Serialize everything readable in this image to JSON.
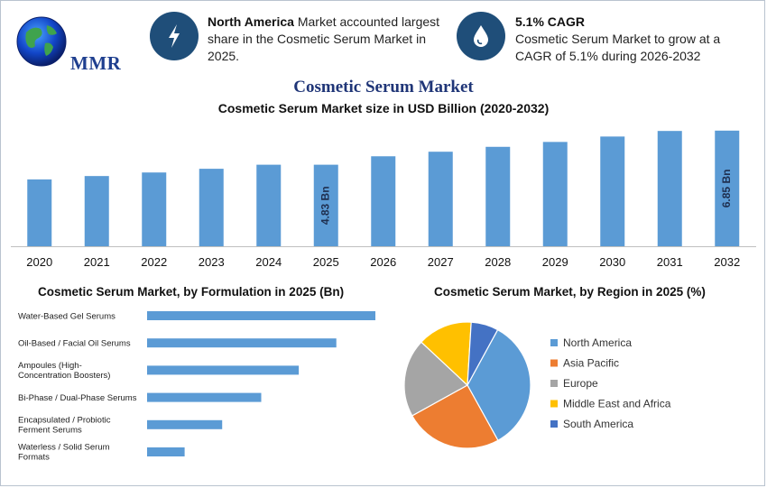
{
  "header": {
    "logo_text": "MMR",
    "stat1": {
      "bold": "North America",
      "text": " Market accounted largest share in the Cosmetic Serum Market in 2025.",
      "icon": "lightning-icon"
    },
    "stat2": {
      "bold": "5.1% CAGR",
      "text": "Cosmetic Serum Market to grow at a CAGR of 5.1% during 2026-2032",
      "icon": "water-drop-icon"
    }
  },
  "title": "Cosmetic Serum Market",
  "colors": {
    "bar": "#5b9bd5",
    "axis": "#bfbfbf",
    "title": "#1f3577"
  },
  "chart_data": [
    {
      "type": "bar",
      "title": "Cosmetic Serum Market size in USD Billion (2020-2032)",
      "categories": [
        "2020",
        "2021",
        "2022",
        "2023",
        "2024",
        "2025",
        "2026",
        "2027",
        "2028",
        "2029",
        "2030",
        "2031",
        "2032"
      ],
      "values": [
        3.96,
        4.16,
        4.37,
        4.59,
        4.83,
        4.83,
        5.33,
        5.6,
        5.89,
        6.18,
        6.5,
        6.83,
        6.85
      ],
      "data_labels": [
        {
          "index": 5,
          "text": "4.83 Bn"
        },
        {
          "index": 12,
          "text": "6.85 Bn"
        }
      ],
      "xlabel": "",
      "ylabel": "",
      "ylim": [
        0,
        7.0
      ],
      "grid": false
    },
    {
      "type": "bar",
      "orientation": "horizontal",
      "title": "Cosmetic Serum Market, by Formulation in 2025 (Bn)",
      "categories": [
        "Water-Based Gel Serums",
        "Oil-Based / Facial Oil Serums",
        "Ampoules (High-Concentration Boosters)",
        "Bi-Phase / Dual-Phase Serums",
        "Encapsulated / Probiotic Ferment Serums",
        "Waterless / Solid Serum Formats"
      ],
      "category_lines": [
        [
          "Water-Based Gel Serums"
        ],
        [
          "Oil-Based / Facial Oil Serums"
        ],
        [
          "Ampoules (High-",
          "Concentration Boosters)"
        ],
        [
          "Bi-Phase / Dual-Phase Serums"
        ],
        [
          "Encapsulated / Probiotic",
          "Ferment Serums"
        ],
        [
          "Waterless / Solid Serum",
          "Formats"
        ]
      ],
      "values": [
        1.52,
        1.26,
        1.01,
        0.76,
        0.5,
        0.25
      ],
      "xlim": [
        0,
        1.52
      ]
    },
    {
      "type": "pie",
      "title": "Cosmetic Serum Market, by Region in 2025 (%)",
      "categories": [
        "North America",
        "Asia Pacific",
        "Europe",
        "Middle East and Africa",
        "South America"
      ],
      "values": [
        34,
        25,
        20,
        14,
        7
      ],
      "colors": [
        "#5b9bd5",
        "#ed7d31",
        "#a5a5a5",
        "#ffc000",
        "#4472c4"
      ],
      "legend_position": "right"
    }
  ]
}
